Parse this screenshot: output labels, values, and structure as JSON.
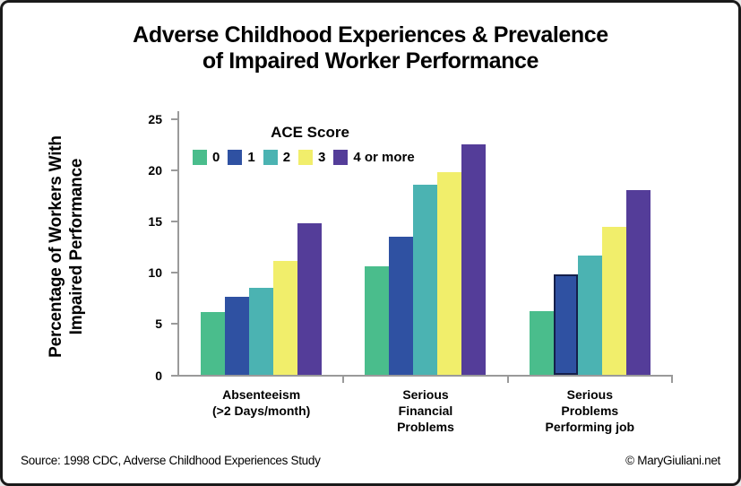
{
  "title": {
    "text": "Adverse Childhood Experiences & Prevalence\nof Impaired Worker Performance"
  },
  "y_axis": {
    "label": "Percentage of Workers With\nImpaired  Performance",
    "ticks": [
      0,
      5,
      10,
      15,
      20,
      25
    ],
    "max": 25,
    "axis_color": "#9a9a9a"
  },
  "legend": {
    "title": "ACE Score"
  },
  "chart_data": {
    "type": "bar",
    "title": "Adverse Childhood Experiences & Prevalence of Impaired Worker Performance",
    "xlabel": "",
    "ylabel": "Percentage of Workers With Impaired Performance",
    "ylim": [
      0,
      25
    ],
    "grid": false,
    "legend_title": "ACE Score",
    "legend_position": "upper-left inside plot",
    "categories": [
      "Absenteeism (>2 Days/month)",
      "Serious Financial Problems",
      "Serious Problems Performing job"
    ],
    "category_label_lines": [
      "Absenteeism\n(>2 Days/month)",
      "Serious\nFinancial\nProblems",
      "Serious\nProblems\nPerforming job"
    ],
    "series": [
      {
        "name": "0",
        "color": "#4ABD8C",
        "values": [
          6.1,
          10.6,
          6.2
        ]
      },
      {
        "name": "1",
        "color": "#2F51A2",
        "values": [
          7.6,
          13.5,
          9.8
        ]
      },
      {
        "name": "2",
        "color": "#4BB3B2",
        "values": [
          8.5,
          18.5,
          11.6
        ]
      },
      {
        "name": "3",
        "color": "#F1EE6B",
        "values": [
          11.1,
          19.8,
          14.4
        ]
      },
      {
        "name": "4 or more",
        "color": "#543D99",
        "values": [
          14.8,
          22.5,
          18.0
        ]
      }
    ],
    "outlined_bar": {
      "category_index": 2,
      "series_index": 1,
      "outline_color": "#141f4b"
    }
  },
  "footer": {
    "source": "Source: 1998 CDC, Adverse Childhood Experiences Study",
    "credit": "© MaryGiuliani.net"
  }
}
